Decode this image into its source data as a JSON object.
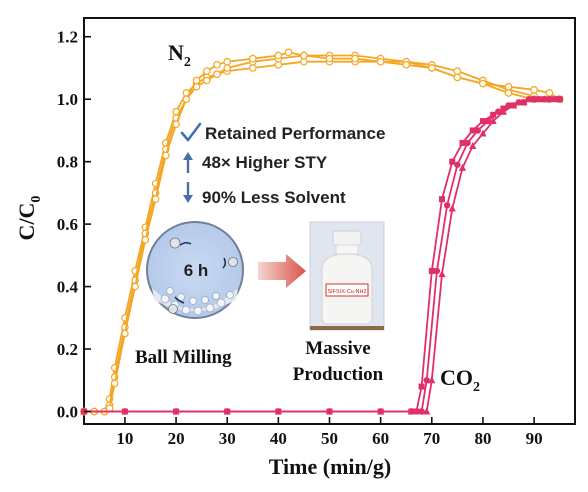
{
  "chart_data": {
    "type": "line",
    "xlabel": "Time (min/g)",
    "ylabel_main": "C/C",
    "ylabel_sub": "0",
    "xlim": [
      2,
      98
    ],
    "ylim": [
      -0.04,
      1.26
    ],
    "x_ticks": [
      10,
      20,
      30,
      40,
      50,
      60,
      70,
      80,
      90
    ],
    "y_ticks": [
      0.0,
      0.2,
      0.4,
      0.6,
      0.8,
      1.0,
      1.2
    ],
    "x_tick_labels": [
      "10",
      "20",
      "30",
      "40",
      "50",
      "60",
      "70",
      "80",
      "90"
    ],
    "y_tick_labels": [
      "0.0",
      "0.2",
      "0.4",
      "0.6",
      "0.8",
      "1.0",
      "1.2"
    ],
    "series": [
      {
        "name": "N2",
        "label_main": "N",
        "label_sub": "2",
        "color": "#f5a623",
        "marker": "open-circle",
        "curves": [
          [
            [
              2,
              0
            ],
            [
              4,
              0
            ],
            [
              6,
              0
            ],
            [
              7,
              0.04
            ],
            [
              8,
              0.14
            ],
            [
              10,
              0.3
            ],
            [
              12,
              0.45
            ],
            [
              14,
              0.59
            ],
            [
              16,
              0.73
            ],
            [
              18,
              0.86
            ],
            [
              20,
              0.96
            ],
            [
              22,
              1.02
            ],
            [
              24,
              1.05
            ],
            [
              26,
              1.07
            ],
            [
              28,
              1.08
            ],
            [
              30,
              1.09
            ],
            [
              35,
              1.1
            ],
            [
              40,
              1.11
            ],
            [
              45,
              1.12
            ],
            [
              50,
              1.12
            ],
            [
              55,
              1.12
            ],
            [
              60,
              1.12
            ],
            [
              65,
              1.12
            ],
            [
              70,
              1.11
            ],
            [
              75,
              1.09
            ],
            [
              80,
              1.06
            ],
            [
              85,
              1.03
            ],
            [
              90,
              1.01
            ],
            [
              93,
              1.0
            ],
            [
              95,
              1.0
            ]
          ],
          [
            [
              2,
              0
            ],
            [
              4,
              0
            ],
            [
              6,
              0
            ],
            [
              7,
              0.02
            ],
            [
              8,
              0.11
            ],
            [
              10,
              0.27
            ],
            [
              12,
              0.42
            ],
            [
              14,
              0.57
            ],
            [
              16,
              0.7
            ],
            [
              18,
              0.84
            ],
            [
              20,
              0.94
            ],
            [
              22,
              1.0
            ],
            [
              24,
              1.04
            ],
            [
              26,
              1.06
            ],
            [
              28,
              1.08
            ],
            [
              30,
              1.1
            ],
            [
              35,
              1.12
            ],
            [
              40,
              1.13
            ],
            [
              45,
              1.14
            ],
            [
              50,
              1.14
            ],
            [
              55,
              1.14
            ],
            [
              60,
              1.13
            ],
            [
              65,
              1.12
            ],
            [
              70,
              1.1
            ],
            [
              75,
              1.07
            ],
            [
              80,
              1.05
            ],
            [
              85,
              1.02
            ],
            [
              90,
              1.0
            ],
            [
              93,
              1.0
            ],
            [
              95,
              1.0
            ]
          ],
          [
            [
              2,
              0
            ],
            [
              4,
              0
            ],
            [
              6,
              0
            ],
            [
              7,
              0.01
            ],
            [
              8,
              0.09
            ],
            [
              10,
              0.25
            ],
            [
              12,
              0.4
            ],
            [
              14,
              0.55
            ],
            [
              16,
              0.68
            ],
            [
              18,
              0.82
            ],
            [
              20,
              0.92
            ],
            [
              22,
              1.0
            ],
            [
              24,
              1.06
            ],
            [
              26,
              1.09
            ],
            [
              28,
              1.11
            ],
            [
              30,
              1.12
            ],
            [
              35,
              1.13
            ],
            [
              40,
              1.14
            ],
            [
              42,
              1.15
            ],
            [
              45,
              1.14
            ],
            [
              50,
              1.13
            ],
            [
              55,
              1.13
            ],
            [
              60,
              1.12
            ],
            [
              65,
              1.11
            ],
            [
              70,
              1.1
            ],
            [
              75,
              1.07
            ],
            [
              80,
              1.05
            ],
            [
              85,
              1.04
            ],
            [
              90,
              1.03
            ],
            [
              93,
              1.02
            ],
            [
              95,
              1.0
            ]
          ]
        ]
      },
      {
        "name": "CO2",
        "label_main": "CO",
        "label_sub": "2",
        "color": "#e0306a",
        "marker": "filled",
        "curves": [
          [
            [
              2,
              0
            ],
            [
              10,
              0
            ],
            [
              20,
              0
            ],
            [
              30,
              0
            ],
            [
              40,
              0
            ],
            [
              50,
              0
            ],
            [
              60,
              0
            ],
            [
              66,
              0
            ],
            [
              67,
              0
            ],
            [
              68,
              0.08
            ],
            [
              70,
              0.45
            ],
            [
              72,
              0.68
            ],
            [
              74,
              0.8
            ],
            [
              76,
              0.86
            ],
            [
              78,
              0.9
            ],
            [
              80,
              0.93
            ],
            [
              82,
              0.95
            ],
            [
              84,
              0.97
            ],
            [
              86,
              0.98
            ],
            [
              88,
              0.99
            ],
            [
              90,
              1.0
            ],
            [
              92,
              1.0
            ],
            [
              94,
              1.0
            ],
            [
              95,
              1.0
            ]
          ],
          [
            [
              2,
              0
            ],
            [
              10,
              0
            ],
            [
              20,
              0
            ],
            [
              30,
              0
            ],
            [
              40,
              0
            ],
            [
              50,
              0
            ],
            [
              60,
              0
            ],
            [
              66,
              0
            ],
            [
              68,
              0
            ],
            [
              69,
              0.1
            ],
            [
              71,
              0.45
            ],
            [
              73,
              0.66
            ],
            [
              75,
              0.79
            ],
            [
              77,
              0.86
            ],
            [
              79,
              0.9
            ],
            [
              81,
              0.93
            ],
            [
              83,
              0.96
            ],
            [
              85,
              0.98
            ],
            [
              87,
              0.99
            ],
            [
              89,
              1.0
            ],
            [
              91,
              1.0
            ],
            [
              93,
              1.0
            ],
            [
              95,
              1.0
            ]
          ],
          [
            [
              2,
              0
            ],
            [
              10,
              0
            ],
            [
              20,
              0
            ],
            [
              30,
              0
            ],
            [
              40,
              0
            ],
            [
              50,
              0
            ],
            [
              60,
              0
            ],
            [
              66,
              0
            ],
            [
              69,
              0
            ],
            [
              70,
              0.1
            ],
            [
              72,
              0.44
            ],
            [
              74,
              0.65
            ],
            [
              76,
              0.78
            ],
            [
              78,
              0.85
            ],
            [
              80,
              0.89
            ],
            [
              82,
              0.93
            ],
            [
              84,
              0.96
            ],
            [
              86,
              0.98
            ],
            [
              88,
              0.99
            ],
            [
              90,
              1.0
            ],
            [
              92,
              1.0
            ],
            [
              95,
              1.0
            ]
          ]
        ]
      }
    ],
    "annotations": [
      {
        "icon": "check",
        "text": "Retained Performance"
      },
      {
        "icon": "arrow-up",
        "text": "48× Higher STY"
      },
      {
        "icon": "arrow-down",
        "text": "90% Less Solvent"
      }
    ],
    "inset": {
      "ball_mill_label": "Ball Milling",
      "duration": "6 h",
      "product_line1": "Massive",
      "product_line2": "Production",
      "bottle_label": "SIFSIX-Cu-NH2"
    }
  }
}
